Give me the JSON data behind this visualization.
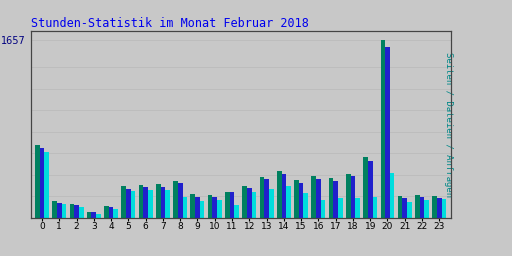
{
  "title": "Stunden-Statistik im Monat Februar 2018",
  "ylabel_right": "Seiten / Dateien / Anfragen",
  "max_value": 1657,
  "hours": [
    0,
    1,
    2,
    3,
    4,
    5,
    6,
    7,
    8,
    9,
    10,
    11,
    12,
    13,
    14,
    15,
    16,
    17,
    18,
    19,
    20,
    21,
    22,
    23
  ],
  "seiten": [
    680,
    155,
    130,
    55,
    110,
    290,
    305,
    310,
    345,
    220,
    210,
    240,
    295,
    380,
    435,
    350,
    385,
    370,
    410,
    560,
    1657,
    200,
    210,
    200
  ],
  "dateien": [
    650,
    140,
    120,
    50,
    100,
    270,
    285,
    285,
    320,
    190,
    195,
    235,
    280,
    355,
    405,
    325,
    360,
    345,
    385,
    530,
    1590,
    185,
    195,
    185
  ],
  "anfragen": [
    615,
    125,
    100,
    38,
    82,
    245,
    260,
    260,
    195,
    155,
    165,
    120,
    235,
    270,
    295,
    230,
    165,
    185,
    185,
    190,
    415,
    145,
    165,
    175
  ],
  "color_seiten": "#008060",
  "color_dateien": "#2020CC",
  "color_anfragen": "#00DDDD",
  "background_color": "#C8C8C8",
  "plot_bg_color": "#C8C8C8",
  "title_color": "#0000EE",
  "grid_color": "#BBBBBB",
  "bar_width": 0.27,
  "grid_vals": [
    200,
    400,
    600,
    800,
    1000,
    1200,
    1400,
    1657
  ]
}
